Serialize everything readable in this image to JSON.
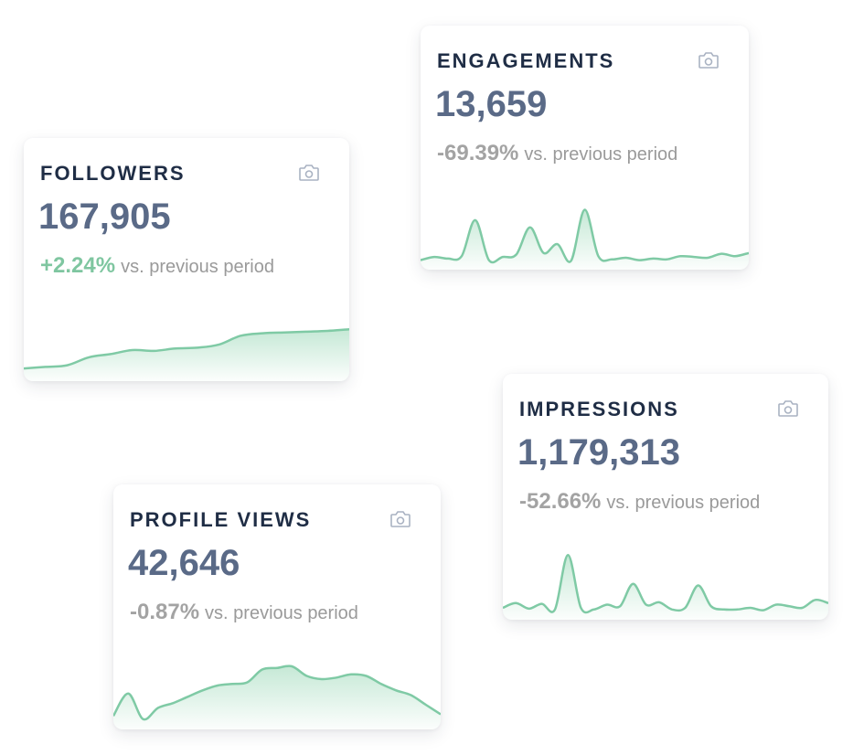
{
  "colors": {
    "title": "#1f2d45",
    "value": "#5a6a87",
    "positive": "#7fc6a0",
    "neutral": "#a3a3a3",
    "spark_line": "#7fcaa5",
    "spark_fill": "#bfe6d1"
  },
  "cards": [
    {
      "id": "followers",
      "title": "FOLLOWERS",
      "value": "167,905",
      "change": "+2.24%",
      "comparison": "vs. previous period",
      "trend": "up",
      "icon": "camera-icon",
      "sparkline": [
        9,
        11,
        13,
        23,
        27,
        32,
        31,
        34,
        35,
        39,
        50,
        53,
        54,
        55,
        56,
        58
      ]
    },
    {
      "id": "engagements",
      "title": "ENGAGEMENTS",
      "value": "13,659",
      "change": "-69.39%",
      "comparison": "vs. previous period",
      "trend": "down",
      "icon": "camera-icon",
      "sparkline": [
        5,
        9,
        7,
        10,
        55,
        5,
        9,
        12,
        46,
        14,
        25,
        4,
        68,
        10,
        6,
        8,
        5,
        7,
        6,
        10,
        9,
        8,
        13,
        10,
        14
      ]
    },
    {
      "id": "profile-views",
      "title": "PROFILE VIEWS",
      "value": "42,646",
      "change": "-0.87%",
      "comparison": "vs. previous period",
      "trend": "down",
      "icon": "camera-icon",
      "sparkline": [
        10,
        38,
        6,
        20,
        26,
        34,
        42,
        48,
        50,
        52,
        68,
        70,
        72,
        60,
        56,
        58,
        62,
        60,
        50,
        42,
        36,
        24,
        12
      ]
    },
    {
      "id": "impressions",
      "title": "IMPRESSIONS",
      "value": "1,179,313",
      "change": "-52.66%",
      "comparison": "vs. previous period",
      "trend": "down",
      "icon": "camera-icon",
      "sparkline": [
        8,
        14,
        7,
        13,
        6,
        74,
        8,
        6,
        12,
        10,
        38,
        12,
        15,
        6,
        8,
        36,
        10,
        6,
        6,
        8,
        5,
        12,
        10,
        8,
        18,
        14
      ]
    }
  ]
}
